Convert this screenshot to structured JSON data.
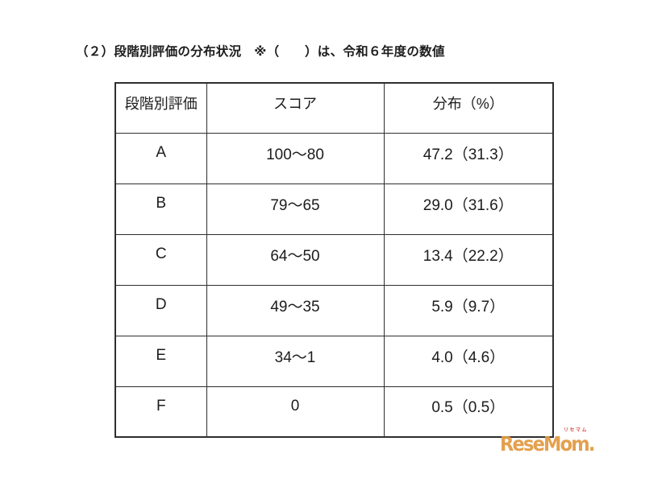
{
  "page": {
    "title": "（２）段階別評価の分布状況　※（　　）は、令和６年度の数値"
  },
  "table": {
    "headers": {
      "grade": "段階別評価",
      "score": "スコア",
      "distribution": "分布（%）"
    },
    "rows": [
      {
        "grade": "A",
        "score": "100～80",
        "distribution": "47.2（31.3）"
      },
      {
        "grade": "B",
        "score": "79～65",
        "distribution": "29.0（31.6）"
      },
      {
        "grade": "C",
        "score": "64～50",
        "distribution": "13.4（22.2）"
      },
      {
        "grade": "D",
        "score": "49～35",
        "distribution": "5.9（9.7）"
      },
      {
        "grade": "E",
        "score": "34～1",
        "distribution": "4.0（4.6）"
      },
      {
        "grade": "F",
        "score": "0",
        "distribution": "0.5（0.5）"
      }
    ]
  },
  "watermark": {
    "text": "ReseMom.",
    "ruby": "リセマム"
  },
  "colors": {
    "brand_orange": "#E2993F",
    "ruby_red": "#D9534F",
    "border": "#2e2e2e",
    "text": "#1c1c1c",
    "background": "#ffffff"
  }
}
